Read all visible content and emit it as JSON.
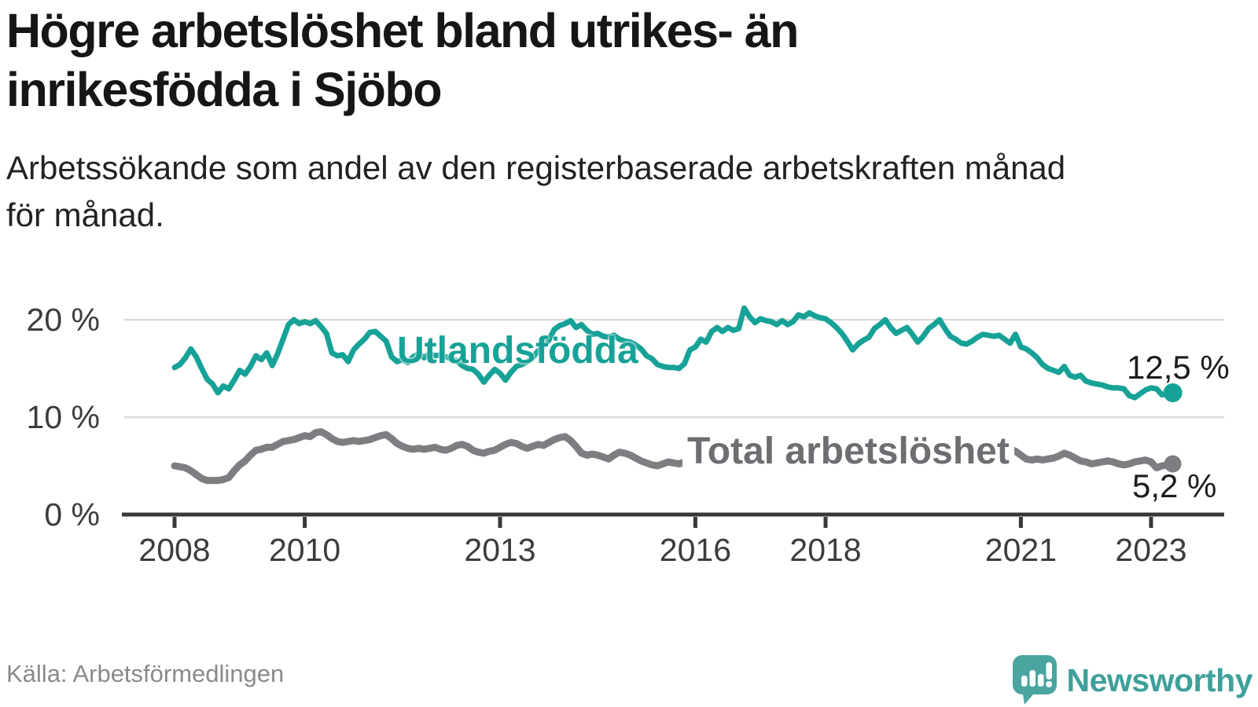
{
  "header": {
    "title_lines": [
      "Högre arbetslöshet bland utrikes- än",
      "inrikesfödda i Sjöbo"
    ],
    "subtitle_lines": [
      "Arbetssökande som andel av den registerbaserade arbetskraften månad",
      "för månad."
    ]
  },
  "colors": {
    "accent": "#17a297",
    "gray_line": "#7e7e82",
    "gray_label": "#6d6d72",
    "grid": "#dadada",
    "axis": "#383838",
    "tick_text": "#3c3c3c",
    "title": "#161616",
    "muted": "#8a8a8a",
    "brand": "#3fa09b"
  },
  "chart_data": {
    "type": "line",
    "title": "Högre arbetslöshet bland utrikes- än inrikesfödda i Sjöbo",
    "subtitle": "Arbetssökande som andel av den registerbaserade arbetskraften månad för månad.",
    "xlabel": "",
    "ylabel": "",
    "grid": "horizontal",
    "legend_position": "inline-labels",
    "x_start_year": 2008,
    "x_step_months": 1,
    "x_end": "2023-05",
    "ylim": [
      0,
      21.5
    ],
    "y_ticks": [
      {
        "value": 0,
        "label": "0 %"
      },
      {
        "value": 10,
        "label": "10 %"
      },
      {
        "value": 20,
        "label": "20 %"
      }
    ],
    "x_ticks": [
      {
        "year": 2008,
        "label": "2008"
      },
      {
        "year": 2010,
        "label": "2010"
      },
      {
        "year": 2013,
        "label": "2013"
      },
      {
        "year": 2016,
        "label": "2016"
      },
      {
        "year": 2018,
        "label": "2018"
      },
      {
        "year": 2021,
        "label": "2021"
      },
      {
        "year": 2023,
        "label": "2023"
      }
    ],
    "series": [
      {
        "id": "utlandsfodda",
        "name": "Utlandsfödda",
        "color": "#17a297",
        "stroke_width": 7,
        "dot_radius": 12,
        "end_value": 12.5,
        "end_label": "12,5 %",
        "values": [
          15.1,
          15.4,
          16.1,
          17.0,
          16.2,
          15.0,
          13.9,
          13.4,
          12.5,
          13.2,
          12.9,
          13.8,
          14.8,
          14.4,
          15.2,
          16.3,
          15.9,
          16.6,
          15.3,
          16.5,
          18.0,
          19.5,
          20.0,
          19.6,
          19.8,
          19.6,
          19.9,
          19.3,
          18.6,
          16.6,
          16.3,
          16.4,
          15.7,
          16.9,
          17.5,
          18.0,
          18.7,
          18.8,
          18.3,
          17.8,
          16.2,
          15.7,
          15.9,
          15.6,
          16.2,
          16.5,
          16.1,
          16.5,
          16.3,
          16.4,
          16.2,
          16.0,
          15.8,
          15.3,
          15.0,
          14.9,
          14.4,
          13.6,
          14.3,
          14.9,
          14.5,
          13.8,
          14.6,
          15.2,
          15.4,
          15.7,
          16.1,
          16.8,
          17.3,
          17.9,
          19.0,
          19.4,
          19.6,
          19.9,
          19.2,
          19.5,
          18.9,
          18.5,
          18.6,
          18.3,
          18.2,
          18.4,
          18.0,
          17.8,
          17.7,
          17.4,
          17.0,
          16.3,
          16.0,
          15.4,
          15.2,
          15.1,
          15.1,
          15.0,
          15.5,
          16.9,
          17.2,
          18.0,
          17.7,
          18.8,
          19.2,
          18.8,
          19.2,
          18.9,
          19.1,
          21.2,
          20.3,
          19.7,
          20.1,
          19.9,
          19.8,
          19.5,
          19.9,
          19.5,
          19.8,
          20.5,
          20.3,
          20.7,
          20.4,
          20.2,
          20.1,
          19.7,
          19.2,
          18.6,
          17.8,
          16.9,
          17.5,
          17.9,
          18.2,
          19.1,
          19.5,
          20.0,
          19.2,
          18.6,
          18.9,
          19.2,
          18.5,
          17.7,
          18.3,
          19.1,
          19.5,
          20.0,
          19.1,
          18.3,
          18.0,
          17.6,
          17.5,
          17.8,
          18.2,
          18.5,
          18.4,
          18.3,
          18.4,
          18.0,
          17.6,
          18.5,
          17.2,
          17.0,
          16.6,
          16.1,
          15.4,
          15.0,
          14.8,
          14.6,
          15.2,
          14.3,
          14.1,
          14.3,
          13.7,
          13.5,
          13.4,
          13.3,
          13.1,
          13.0,
          13.0,
          12.9,
          12.2,
          12.0,
          12.4,
          12.8,
          13.0,
          12.9,
          12.3,
          12.4,
          12.5
        ]
      },
      {
        "id": "total",
        "name": "Total arbetslöshet",
        "color": "#7e7e82",
        "stroke_width": 9,
        "dot_radius": 11,
        "end_value": 5.2,
        "end_label": "5,2 %",
        "values": [
          5.0,
          4.9,
          4.8,
          4.5,
          4.1,
          3.7,
          3.5,
          3.5,
          3.5,
          3.6,
          3.8,
          4.5,
          5.1,
          5.5,
          6.1,
          6.6,
          6.7,
          6.9,
          6.9,
          7.2,
          7.5,
          7.6,
          7.7,
          7.9,
          8.1,
          8.0,
          8.4,
          8.5,
          8.2,
          7.8,
          7.5,
          7.4,
          7.5,
          7.6,
          7.5,
          7.6,
          7.7,
          7.9,
          8.1,
          8.2,
          7.8,
          7.3,
          7.0,
          6.8,
          6.7,
          6.8,
          6.7,
          6.8,
          6.9,
          6.7,
          6.6,
          6.8,
          7.1,
          7.2,
          7.0,
          6.6,
          6.4,
          6.3,
          6.5,
          6.6,
          6.9,
          7.2,
          7.4,
          7.3,
          7.0,
          6.8,
          7.0,
          7.2,
          7.1,
          7.4,
          7.7,
          7.9,
          8.0,
          7.6,
          7.0,
          6.3,
          6.1,
          6.2,
          6.1,
          5.9,
          5.7,
          6.1,
          6.4,
          6.3,
          6.1,
          5.8,
          5.5,
          5.3,
          5.1,
          5.0,
          5.2,
          5.4,
          5.3,
          5.2,
          5.4,
          5.6,
          5.7,
          5.9,
          5.8,
          6.0,
          6.1,
          6.0,
          6.2,
          6.3,
          6.2,
          6.4,
          6.3,
          6.4,
          6.5,
          6.4,
          6.3,
          6.4,
          6.2,
          6.1,
          6.2,
          6.0,
          5.9,
          6.0,
          5.9,
          5.8,
          5.9,
          5.8,
          5.7,
          5.6,
          5.5,
          5.6,
          5.5,
          5.6,
          5.7,
          5.6,
          5.7,
          5.8,
          5.9,
          6.0,
          6.1,
          6.0,
          6.1,
          6.2,
          6.1,
          6.2,
          6.3,
          6.2,
          6.3,
          6.4,
          6.5,
          6.6,
          7.0,
          7.6,
          7.9,
          7.8,
          7.5,
          7.2,
          6.9,
          7.0,
          6.7,
          6.5,
          6.1,
          5.7,
          5.6,
          5.7,
          5.6,
          5.7,
          5.8,
          6.0,
          6.3,
          6.1,
          5.8,
          5.5,
          5.4,
          5.2,
          5.3,
          5.4,
          5.5,
          5.4,
          5.2,
          5.1,
          5.2,
          5.4,
          5.5,
          5.6,
          5.4,
          4.8,
          5.0,
          5.1,
          5.2
        ]
      }
    ]
  },
  "footer": {
    "source": "Källa: Arbetsförmedlingen",
    "brand": "Newsworthy"
  }
}
